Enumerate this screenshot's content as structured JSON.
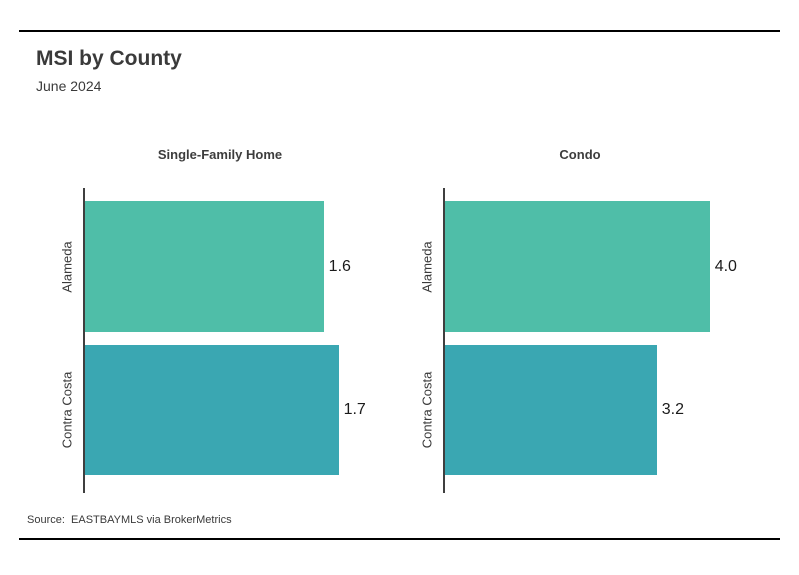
{
  "header": {
    "title": "MSI by County",
    "subtitle": "June 2024"
  },
  "footer": {
    "source": "Source:  EASTBAYMLS via BrokerMetrics"
  },
  "colors": {
    "bar_green": "#4FBEA8",
    "bar_teal": "#3AA7B2",
    "axis_line": "#3F3F3F",
    "heading_text": "#3A3A3A",
    "value_text": "#1B1B1B",
    "rule": "#000000"
  },
  "chart_data": [
    {
      "type": "bar",
      "orientation": "horizontal",
      "title": "Single-Family Home",
      "categories": [
        "Alameda",
        "Contra Costa"
      ],
      "values": [
        1.6,
        1.7
      ],
      "value_labels": [
        "1.6",
        "1.7"
      ],
      "bar_colors": [
        "#4FBEA8",
        "#3AA7B2"
      ],
      "xlim": [
        0,
        1.81
      ],
      "grid": false,
      "legend": false
    },
    {
      "type": "bar",
      "orientation": "horizontal",
      "title": "Condo",
      "categories": [
        "Alameda",
        "Contra Costa"
      ],
      "values": [
        4.0,
        3.2
      ],
      "value_labels": [
        "4.0",
        "3.2"
      ],
      "bar_colors": [
        "#4FBEA8",
        "#3AA7B2"
      ],
      "xlim": [
        0,
        4.08
      ],
      "grid": false,
      "legend": false
    }
  ]
}
